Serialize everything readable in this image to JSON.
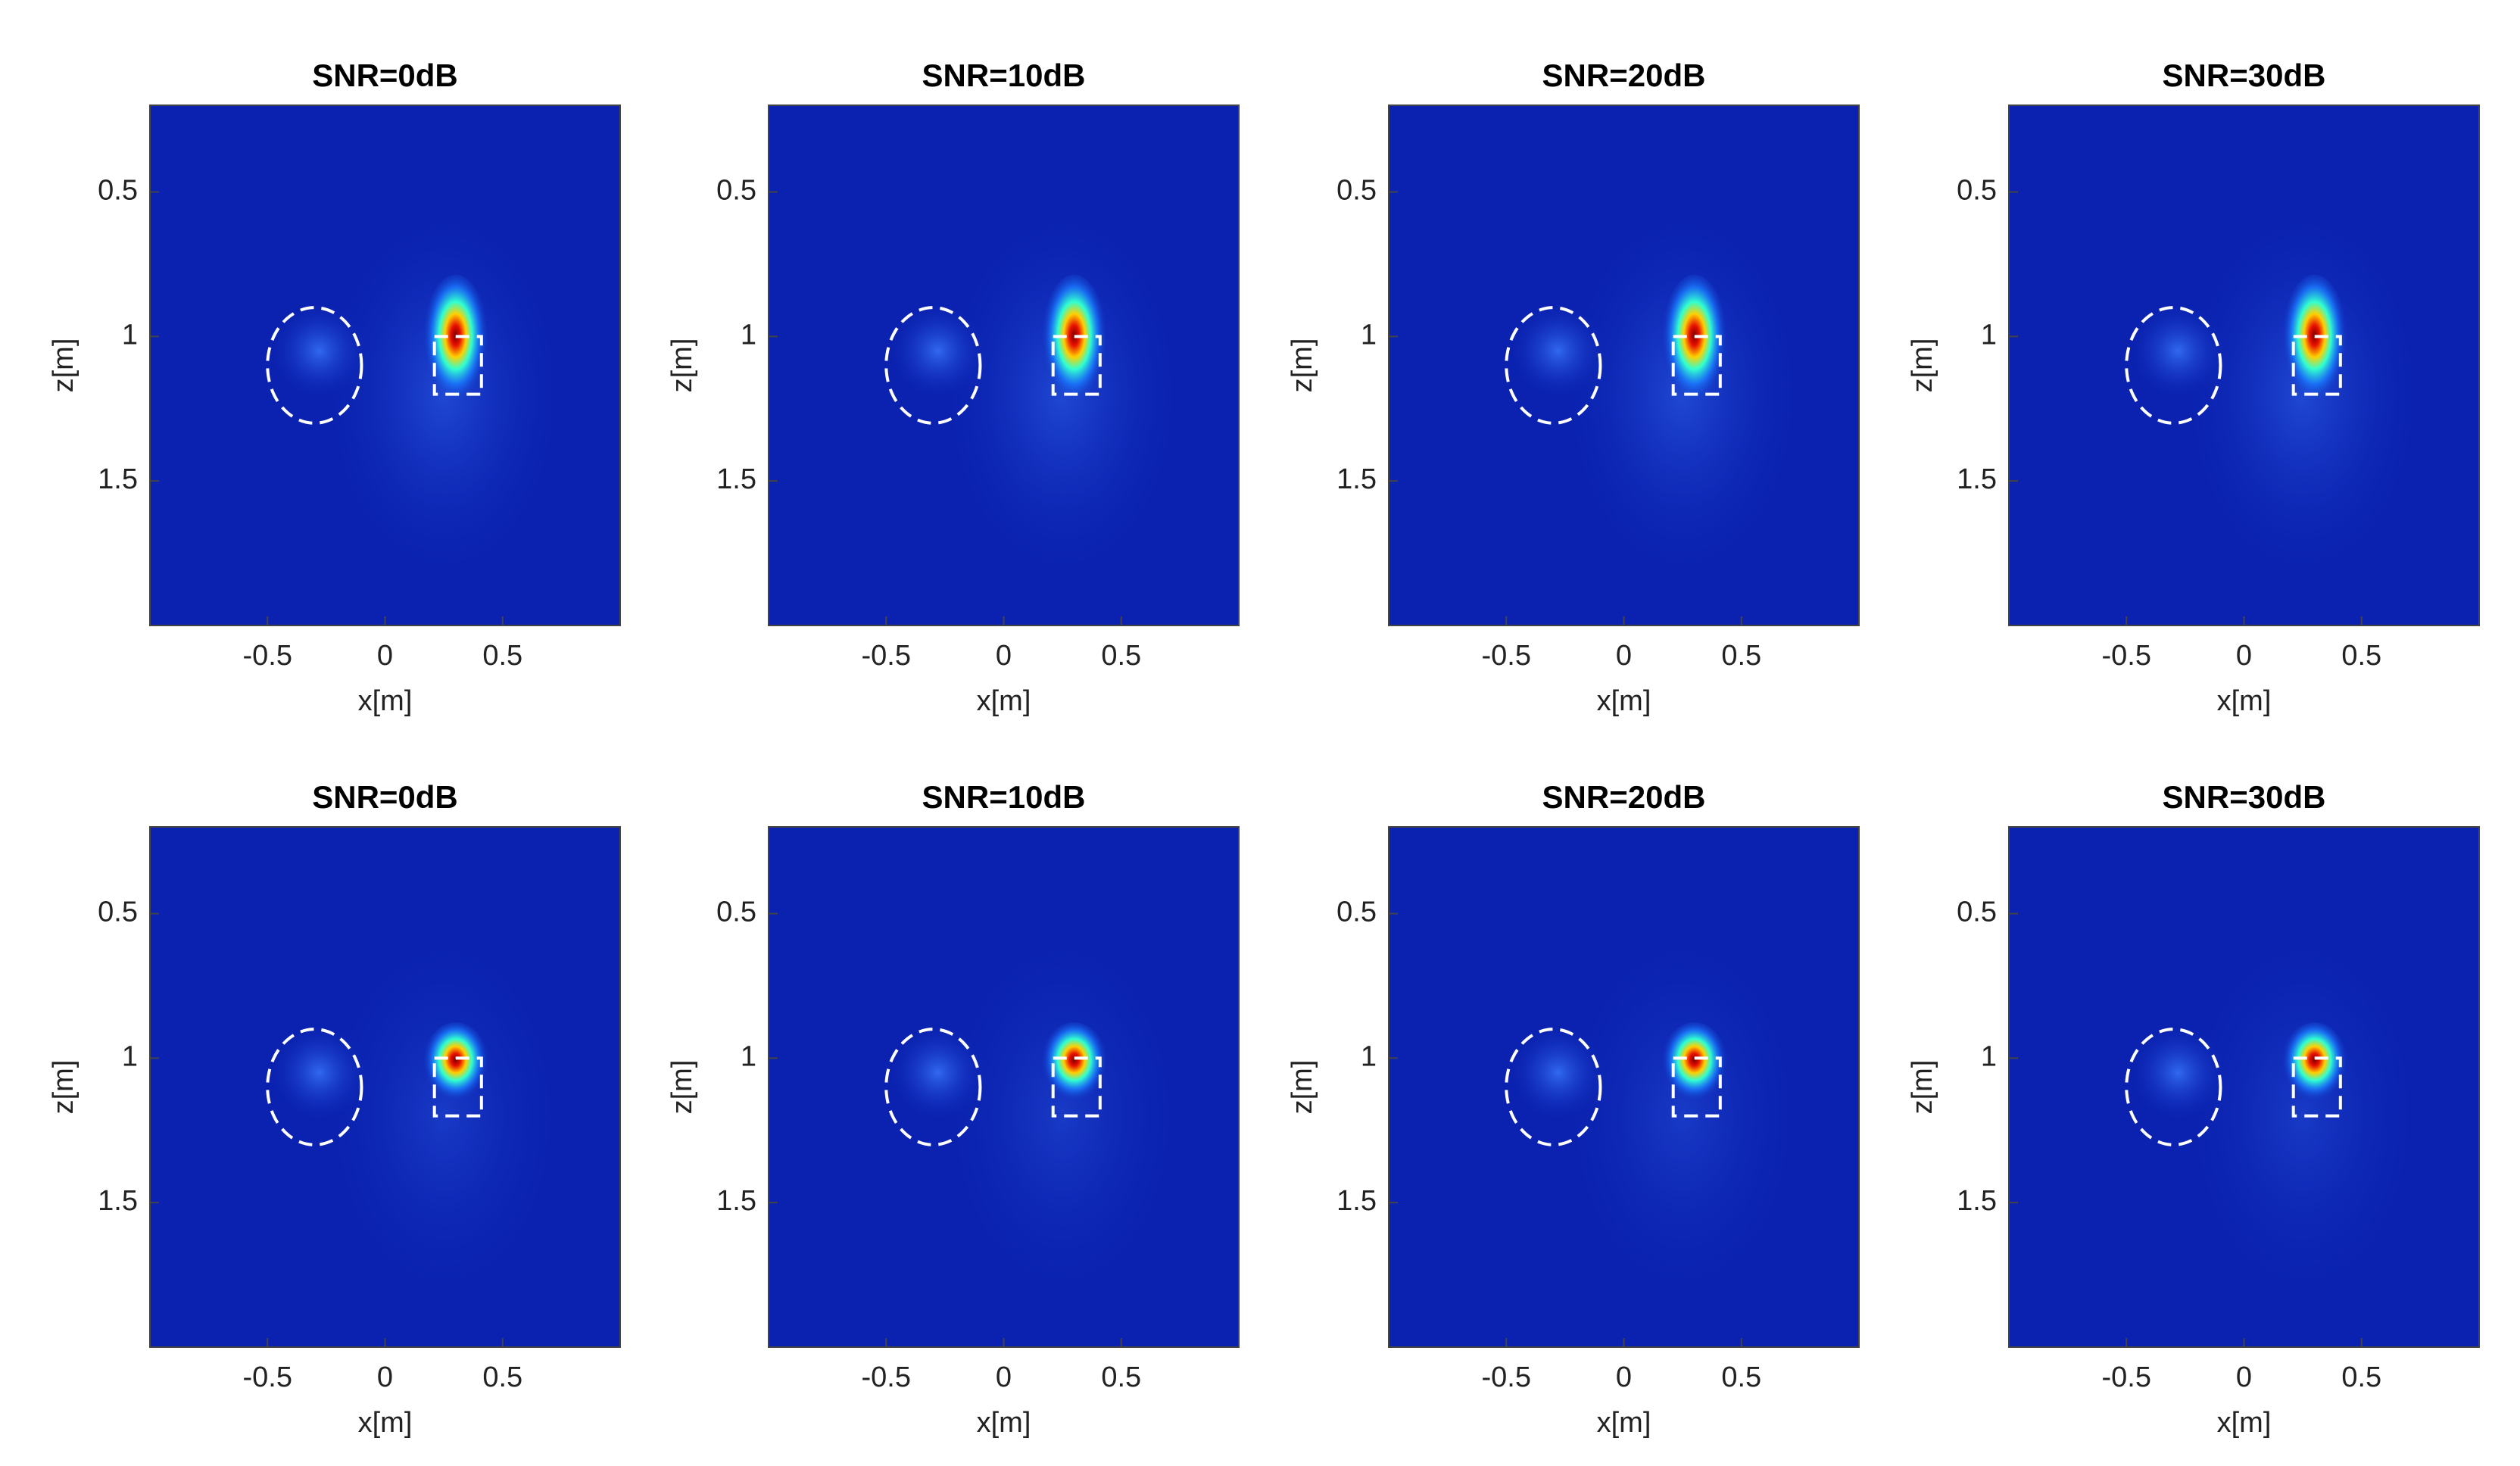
{
  "chart_data": [
    {
      "type": "heatmap",
      "title": "SNR=0dB",
      "xlabel": "x[m]",
      "ylabel": "z[m]",
      "xlim": [
        -1,
        1
      ],
      "ylim": [
        0.2,
        2
      ],
      "y_reversed": true,
      "xticks": [
        -0.5,
        0,
        0.5
      ],
      "yticks": [
        0.5,
        1,
        1.5
      ],
      "colormap": "jet"
    },
    {
      "type": "heatmap",
      "title": "SNR=10dB",
      "xlabel": "x[m]",
      "ylabel": "z[m]",
      "xlim": [
        -1,
        1
      ],
      "ylim": [
        0.2,
        2
      ],
      "y_reversed": true,
      "xticks": [
        -0.5,
        0,
        0.5
      ],
      "yticks": [
        0.5,
        1,
        1.5
      ],
      "colormap": "jet"
    },
    {
      "type": "heatmap",
      "title": "SNR=20dB",
      "xlabel": "x[m]",
      "ylabel": "z[m]",
      "xlim": [
        -1,
        1
      ],
      "ylim": [
        0.2,
        2
      ],
      "y_reversed": true,
      "xticks": [
        -0.5,
        0,
        0.5
      ],
      "yticks": [
        0.5,
        1,
        1.5
      ],
      "colormap": "jet"
    },
    {
      "type": "heatmap",
      "title": "SNR=30dB",
      "xlabel": "x[m]",
      "ylabel": "z[m]",
      "xlim": [
        -1,
        1
      ],
      "ylim": [
        0.2,
        2
      ],
      "y_reversed": true,
      "xticks": [
        -0.5,
        0,
        0.5
      ],
      "yticks": [
        0.5,
        1,
        1.5
      ],
      "colormap": "jet"
    },
    {
      "type": "heatmap",
      "title": "SNR=0dB",
      "xlabel": "x[m]",
      "ylabel": "z[m]",
      "xlim": [
        -1,
        1
      ],
      "ylim": [
        0.2,
        2
      ],
      "y_reversed": true,
      "xticks": [
        -0.5,
        0,
        0.5
      ],
      "yticks": [
        0.5,
        1,
        1.5
      ],
      "colormap": "jet"
    },
    {
      "type": "heatmap",
      "title": "SNR=10dB",
      "xlabel": "x[m]",
      "ylabel": "z[m]",
      "xlim": [
        -1,
        1
      ],
      "ylim": [
        0.2,
        2
      ],
      "y_reversed": true,
      "xticks": [
        -0.5,
        0,
        0.5
      ],
      "yticks": [
        0.5,
        1,
        1.5
      ],
      "colormap": "jet"
    },
    {
      "type": "heatmap",
      "title": "SNR=20dB",
      "xlabel": "x[m]",
      "ylabel": "z[m]",
      "xlim": [
        -1,
        1
      ],
      "ylim": [
        0.2,
        2
      ],
      "y_reversed": true,
      "xticks": [
        -0.5,
        0,
        0.5
      ],
      "yticks": [
        0.5,
        1,
        1.5
      ],
      "colormap": "jet"
    },
    {
      "type": "heatmap",
      "title": "SNR=30dB",
      "xlabel": "x[m]",
      "ylabel": "z[m]",
      "xlim": [
        -1,
        1
      ],
      "ylim": [
        0.2,
        2
      ],
      "y_reversed": true,
      "xticks": [
        -0.5,
        0,
        0.5
      ],
      "yticks": [
        0.5,
        1,
        1.5
      ],
      "colormap": "jet"
    }
  ]
}
